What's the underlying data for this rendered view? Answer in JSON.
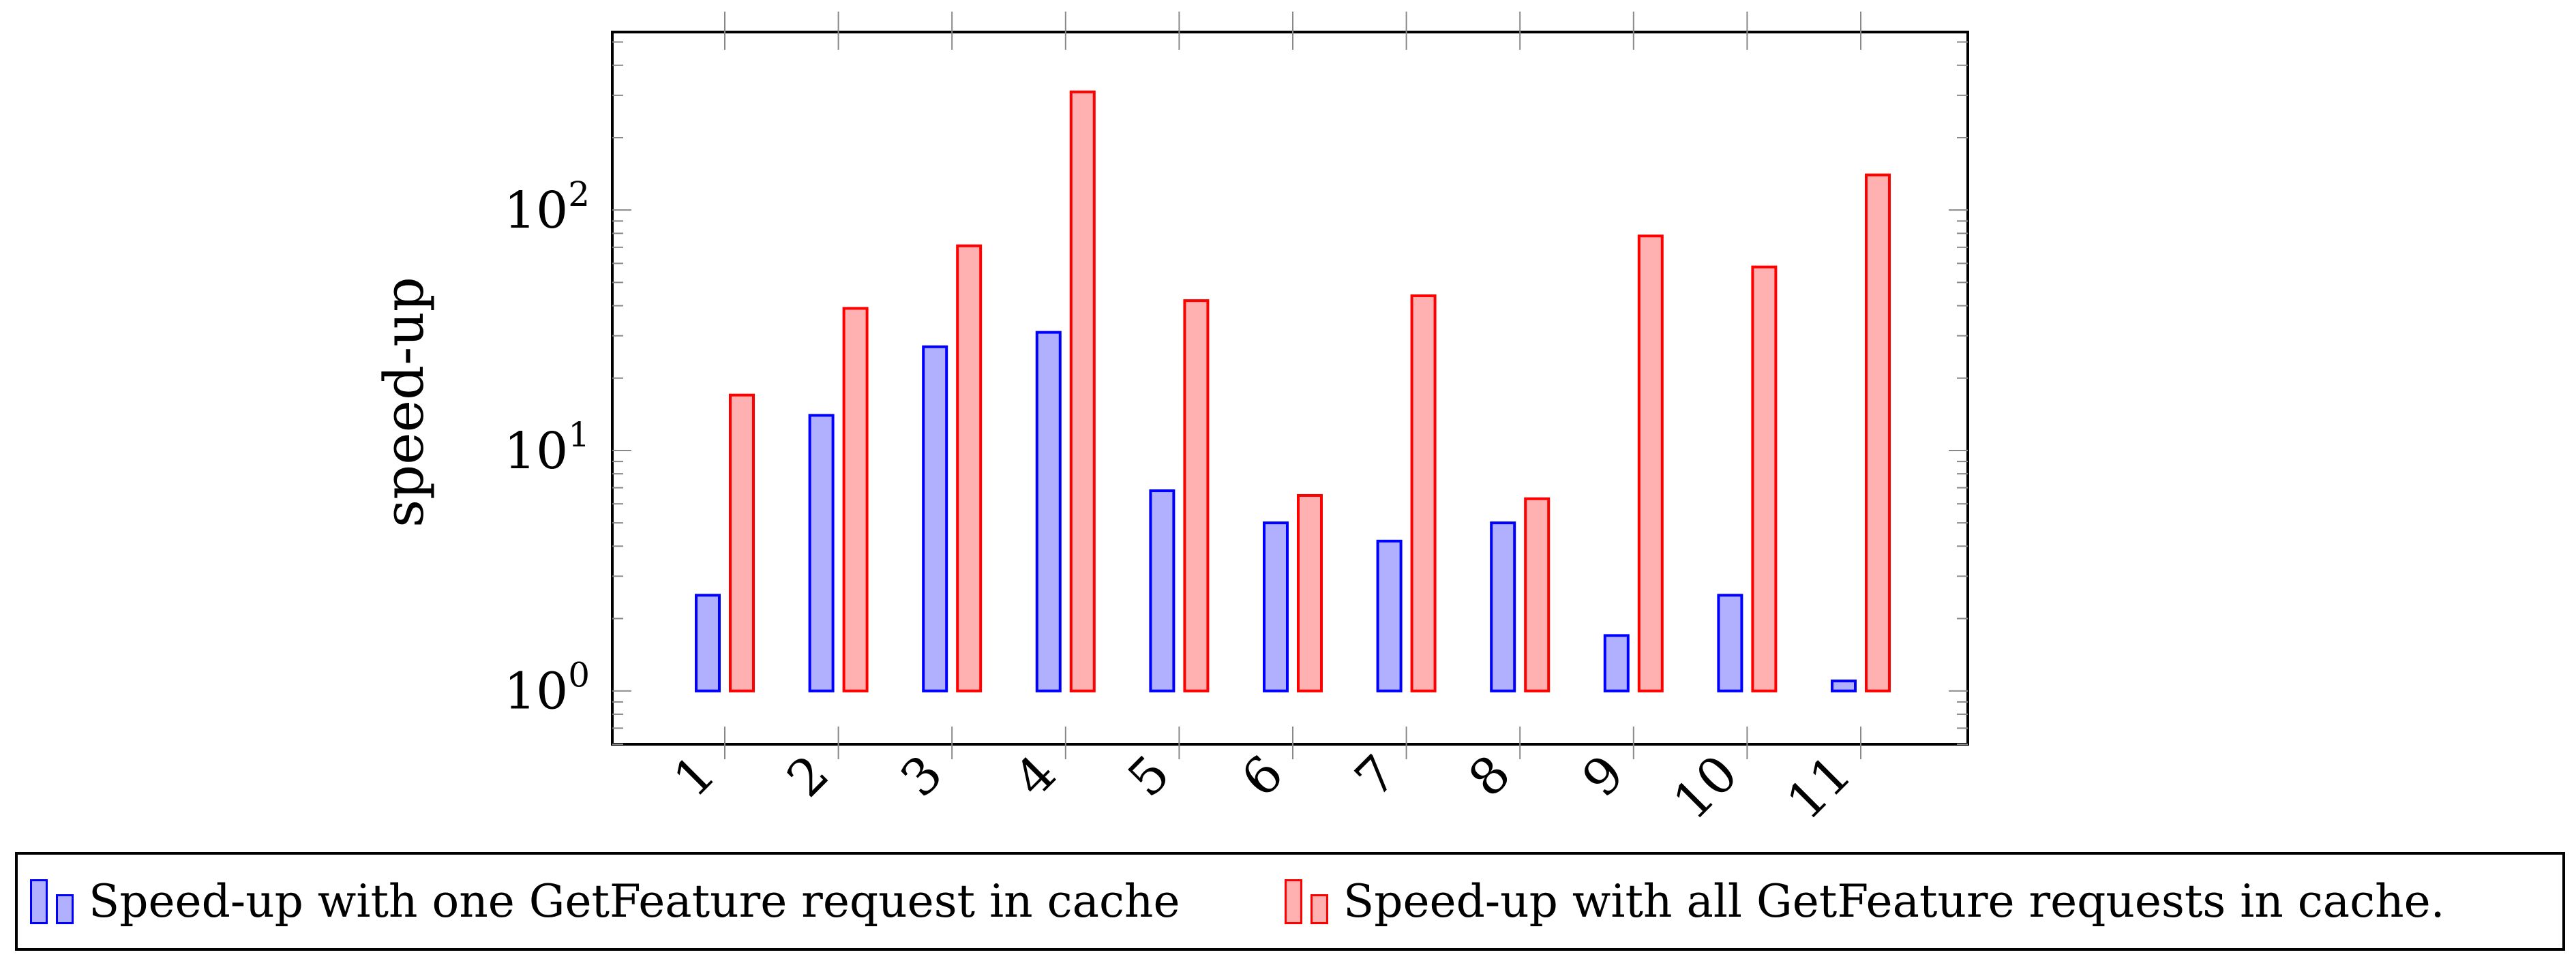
{
  "chart_data": {
    "type": "bar",
    "ylabel": "speed-up",
    "xlabel": "",
    "yscale": "log",
    "ylim": [
      0.6,
      550
    ],
    "categories": [
      "1",
      "2",
      "3",
      "4",
      "5",
      "6",
      "7",
      "8",
      "9",
      "10",
      "11"
    ],
    "y_ticks": [
      {
        "value": 1,
        "base": "10",
        "exp": "0"
      },
      {
        "value": 10,
        "base": "10",
        "exp": "1"
      },
      {
        "value": 100,
        "base": "10",
        "exp": "2"
      }
    ],
    "x_tick_label_rotation": 45,
    "grid": false,
    "legend_position": "bottom",
    "series": [
      {
        "name": "Speed-up with one GetFeature request in cache",
        "color": "#0000ff",
        "fill": "#b0b0ff",
        "values": [
          2.5,
          14,
          27,
          31,
          6.8,
          5.0,
          4.2,
          5.0,
          1.7,
          2.5,
          1.1
        ]
      },
      {
        "name": "Speed-up with all GetFeature requests in cache.",
        "color": "#ff0000",
        "fill": "#ffb0b0",
        "values": [
          17,
          39,
          71,
          310,
          42,
          6.5,
          44,
          6.3,
          78,
          58,
          140
        ]
      }
    ]
  }
}
